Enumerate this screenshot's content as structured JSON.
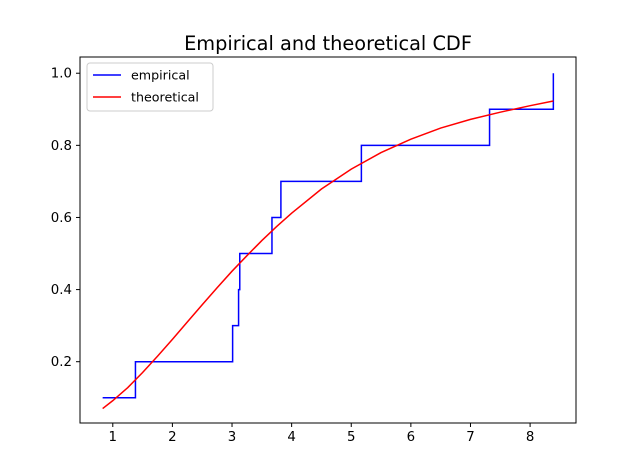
{
  "chart_data": {
    "type": "line",
    "title": "Empirical and theoretical CDF",
    "xlabel": "",
    "ylabel": "",
    "xlim": [
      0.45,
      8.77
    ],
    "ylim": [
      0.03,
      1.045
    ],
    "grid": false,
    "legend_position": "top-left",
    "x_ticks": [
      1,
      2,
      3,
      4,
      5,
      6,
      7,
      8
    ],
    "y_ticks": [
      0.2,
      0.4,
      0.6,
      0.8,
      1.0
    ],
    "x_tick_labels": [
      "1",
      "2",
      "3",
      "4",
      "5",
      "6",
      "7",
      "8"
    ],
    "y_tick_labels": [
      "0.2",
      "0.4",
      "0.6",
      "0.8",
      "1.0"
    ],
    "series": [
      {
        "name": "empirical",
        "color": "#0000ff",
        "style": "step",
        "x": [
          0.83,
          1.38,
          1.38,
          3.01,
          3.01,
          3.11,
          3.11,
          3.13,
          3.13,
          3.67,
          3.67,
          3.82,
          3.82,
          5.17,
          5.17,
          7.32,
          7.32,
          8.39,
          8.39
        ],
        "y": [
          0.1,
          0.1,
          0.2,
          0.2,
          0.3,
          0.3,
          0.4,
          0.4,
          0.5,
          0.5,
          0.6,
          0.6,
          0.7,
          0.7,
          0.8,
          0.8,
          0.9,
          0.9,
          1.0
        ]
      },
      {
        "name": "theoretical",
        "color": "#ff0000",
        "style": "line",
        "x": [
          0.83,
          1.0,
          1.25,
          1.5,
          1.75,
          2.0,
          2.25,
          2.5,
          2.75,
          3.0,
          3.25,
          3.5,
          3.75,
          4.0,
          4.5,
          5.0,
          5.5,
          6.0,
          6.5,
          7.0,
          7.5,
          8.0,
          8.39
        ],
        "y": [
          0.07,
          0.092,
          0.128,
          0.17,
          0.215,
          0.262,
          0.31,
          0.358,
          0.405,
          0.451,
          0.494,
          0.536,
          0.575,
          0.612,
          0.679,
          0.734,
          0.78,
          0.817,
          0.848,
          0.872,
          0.892,
          0.91,
          0.923
        ]
      }
    ]
  }
}
